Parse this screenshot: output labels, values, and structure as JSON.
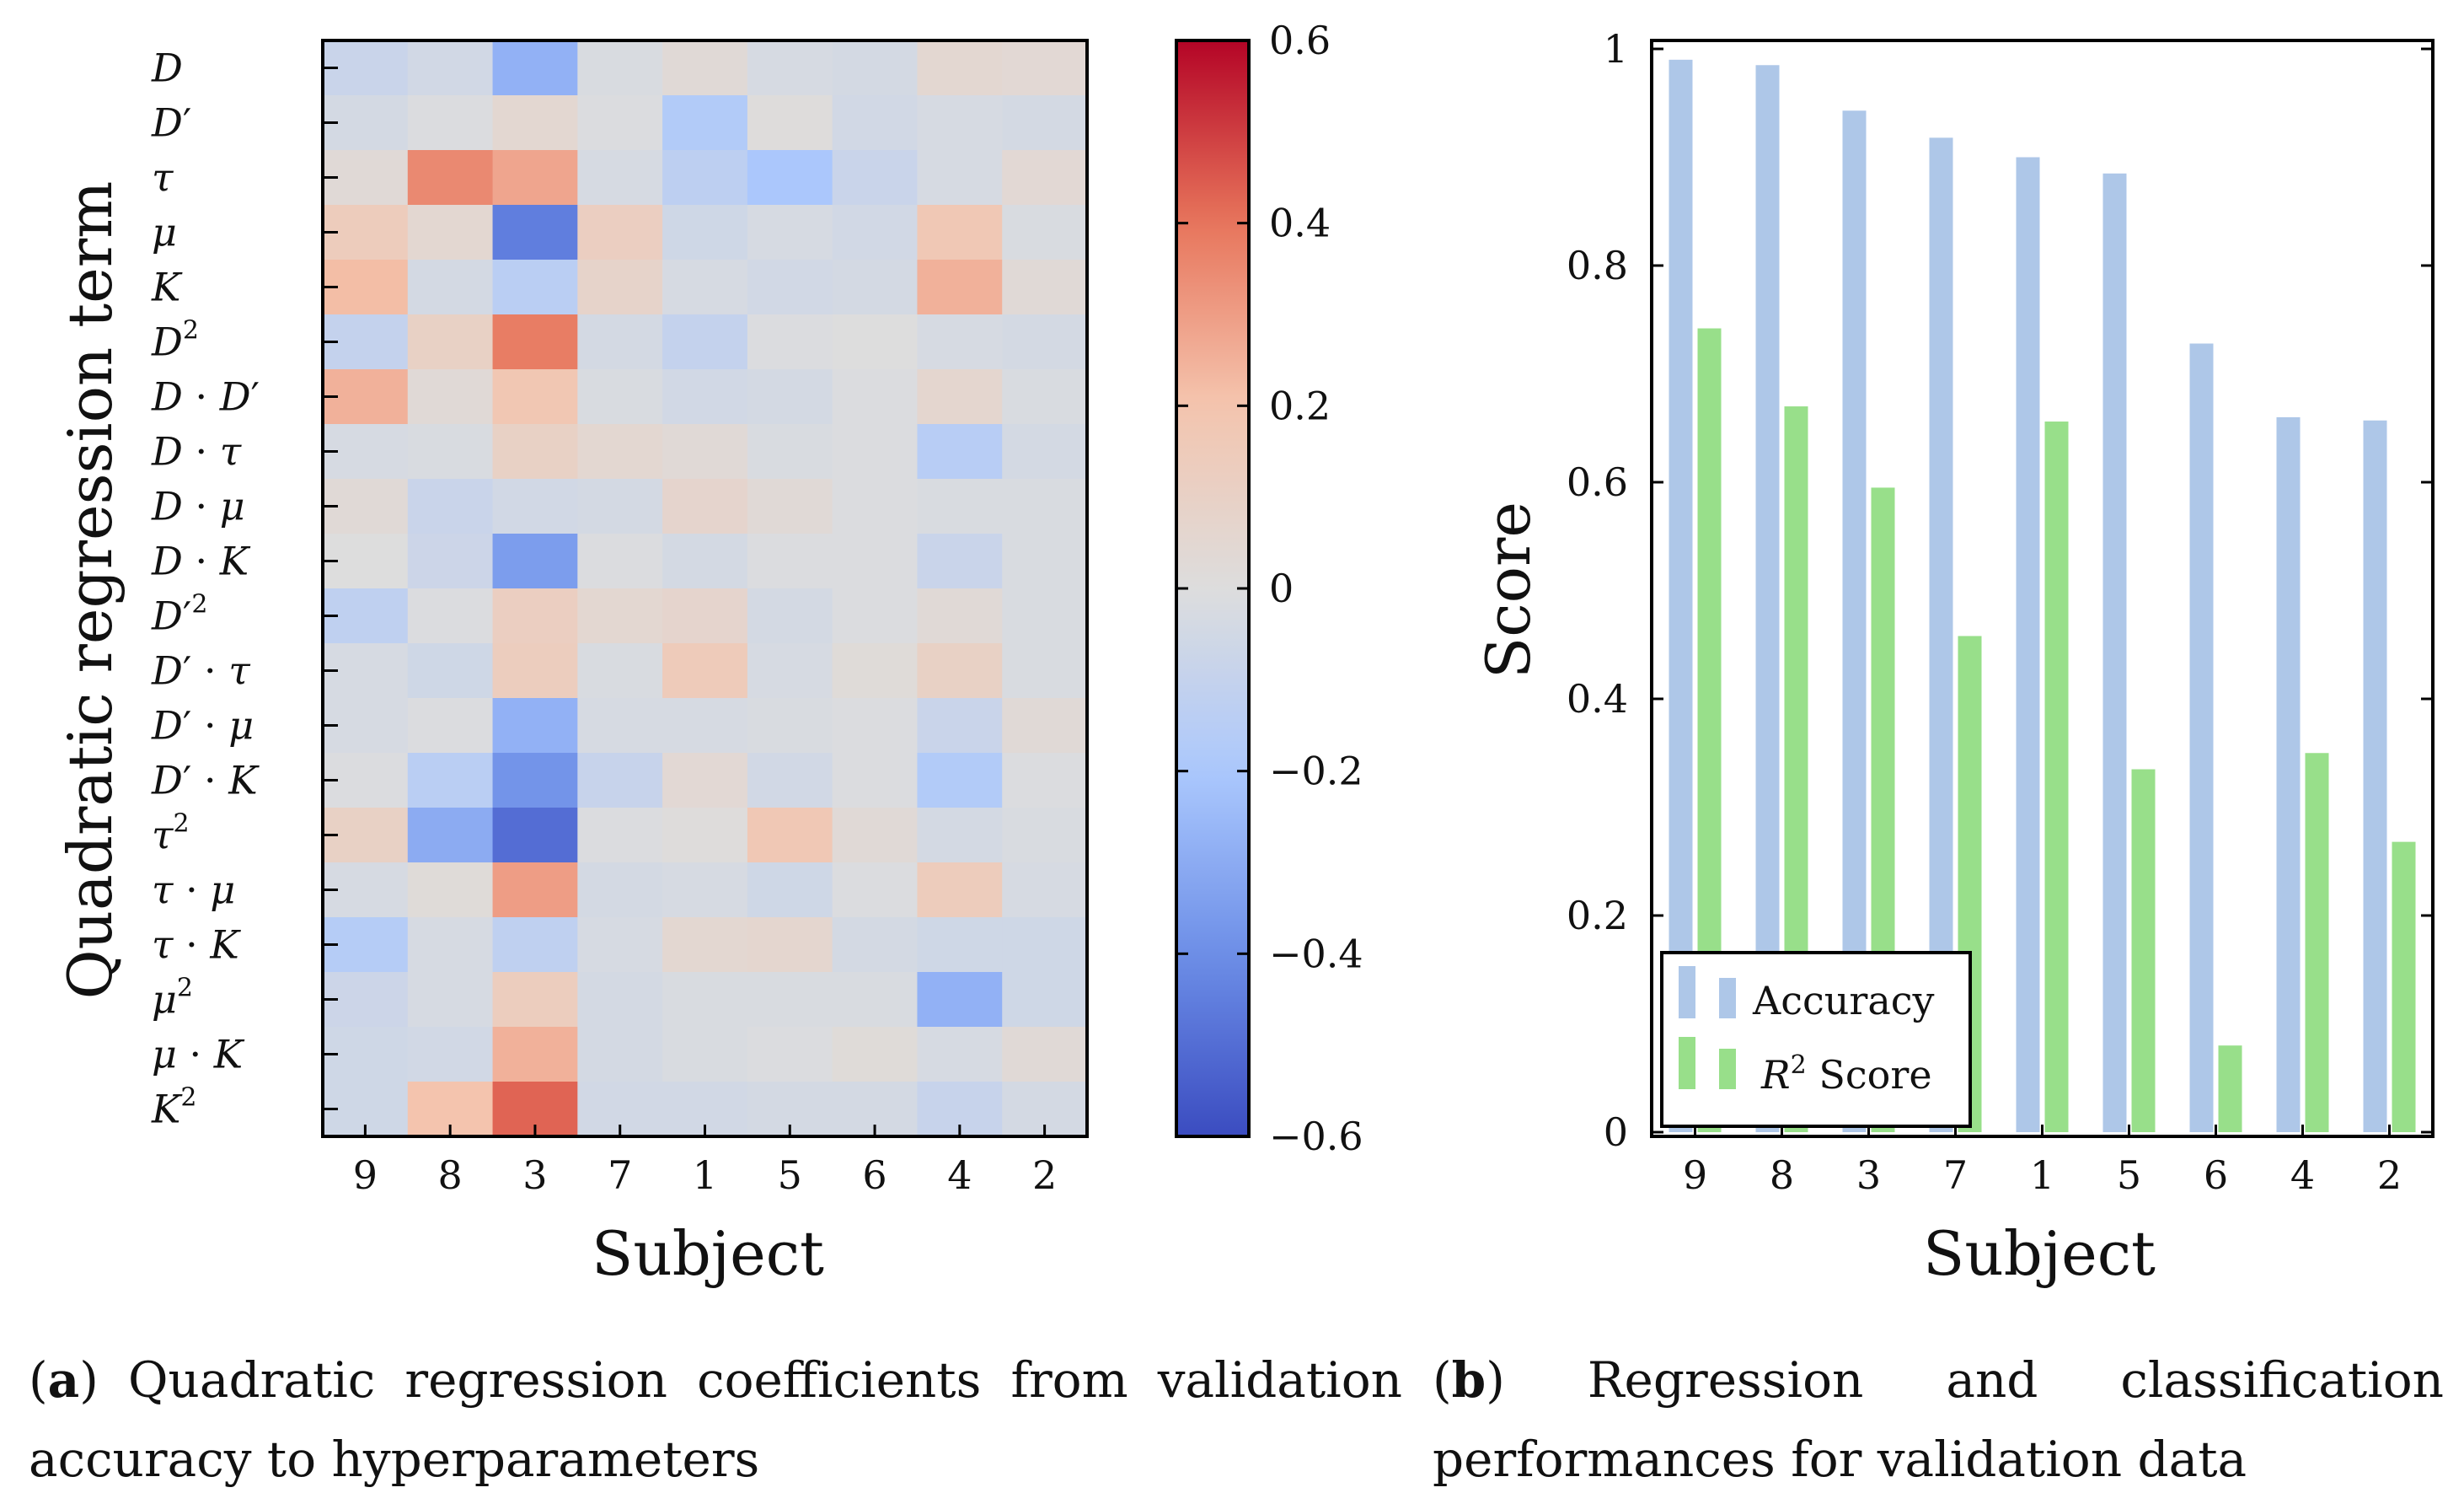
{
  "colors": {
    "accuracy": "#aec7e8",
    "r2": "#98df8a",
    "cmap_low": "#3b4cc0",
    "cmap_mid": "#dddddd",
    "cmap_high": "#b40426"
  },
  "chart_data": [
    {
      "type": "heatmap",
      "title": "",
      "xlabel": "Subject",
      "ylabel": "Quadratic regression term",
      "x_categories": [
        "9",
        "8",
        "3",
        "7",
        "1",
        "5",
        "6",
        "4",
        "2"
      ],
      "y_terms": [
        {
          "base": "D",
          "prime": "",
          "op": "",
          "base2": "",
          "prime2": "",
          "sup": ""
        },
        {
          "base": "D",
          "prime": "′",
          "op": "",
          "base2": "",
          "prime2": "",
          "sup": ""
        },
        {
          "base": "τ",
          "prime": "",
          "op": "",
          "base2": "",
          "prime2": "",
          "sup": ""
        },
        {
          "base": "μ",
          "prime": "",
          "op": "",
          "base2": "",
          "prime2": "",
          "sup": ""
        },
        {
          "base": "K",
          "prime": "",
          "op": "",
          "base2": "",
          "prime2": "",
          "sup": ""
        },
        {
          "base": "D",
          "prime": "",
          "op": "",
          "base2": "",
          "prime2": "",
          "sup": "2"
        },
        {
          "base": "D",
          "prime": "",
          "op": " · ",
          "base2": "D",
          "prime2": "′",
          "sup": ""
        },
        {
          "base": "D",
          "prime": "",
          "op": " · ",
          "base2": "τ",
          "prime2": "",
          "sup": ""
        },
        {
          "base": "D",
          "prime": "",
          "op": " · ",
          "base2": "μ",
          "prime2": "",
          "sup": ""
        },
        {
          "base": "D",
          "prime": "",
          "op": " · ",
          "base2": "K",
          "prime2": "",
          "sup": ""
        },
        {
          "base": "D",
          "prime": "′",
          "op": "",
          "base2": "",
          "prime2": "",
          "sup": "2"
        },
        {
          "base": "D",
          "prime": "′",
          "op": " · ",
          "base2": "τ",
          "prime2": "",
          "sup": ""
        },
        {
          "base": "D",
          "prime": "′",
          "op": " · ",
          "base2": "μ",
          "prime2": "",
          "sup": ""
        },
        {
          "base": "D",
          "prime": "′",
          "op": " · ",
          "base2": "K",
          "prime2": "",
          "sup": ""
        },
        {
          "base": "τ",
          "prime": "",
          "op": "",
          "base2": "",
          "prime2": "",
          "sup": "2"
        },
        {
          "base": "τ",
          "prime": "",
          "op": " · ",
          "base2": "μ",
          "prime2": "",
          "sup": ""
        },
        {
          "base": "τ",
          "prime": "",
          "op": " · ",
          "base2": "K",
          "prime2": "",
          "sup": ""
        },
        {
          "base": "μ",
          "prime": "",
          "op": "",
          "base2": "",
          "prime2": "",
          "sup": "2"
        },
        {
          "base": "μ",
          "prime": "",
          "op": " · ",
          "base2": "K",
          "prime2": "",
          "sup": ""
        },
        {
          "base": "K",
          "prime": "",
          "op": "",
          "base2": "",
          "prime2": "",
          "sup": "2"
        }
      ],
      "values": [
        [
          -0.08,
          -0.05,
          -0.28,
          -0.02,
          0.03,
          -0.03,
          -0.04,
          0.05,
          0.04
        ],
        [
          -0.04,
          -0.01,
          0.05,
          -0.01,
          -0.17,
          0.01,
          -0.05,
          -0.03,
          -0.04
        ],
        [
          0.03,
          0.35,
          0.28,
          -0.03,
          -0.13,
          -0.2,
          -0.08,
          -0.03,
          0.04
        ],
        [
          0.14,
          0.05,
          -0.45,
          0.12,
          -0.06,
          -0.03,
          -0.05,
          0.17,
          -0.02
        ],
        [
          0.22,
          -0.04,
          -0.14,
          0.08,
          -0.03,
          -0.05,
          -0.04,
          0.25,
          0.03
        ],
        [
          -0.1,
          0.1,
          0.38,
          -0.04,
          -0.1,
          -0.01,
          0.0,
          -0.03,
          -0.04
        ],
        [
          0.25,
          0.03,
          0.18,
          -0.02,
          -0.05,
          -0.04,
          -0.01,
          0.06,
          -0.02
        ],
        [
          -0.03,
          -0.02,
          0.1,
          0.05,
          0.03,
          -0.02,
          -0.01,
          -0.15,
          -0.04
        ],
        [
          0.03,
          -0.08,
          -0.05,
          -0.04,
          0.07,
          0.03,
          -0.01,
          -0.02,
          -0.02
        ],
        [
          0.0,
          -0.07,
          -0.35,
          -0.01,
          -0.04,
          -0.01,
          -0.01,
          -0.08,
          -0.02
        ],
        [
          -0.12,
          -0.01,
          0.12,
          0.05,
          0.07,
          -0.04,
          -0.01,
          0.03,
          -0.02
        ],
        [
          -0.03,
          -0.06,
          0.13,
          -0.02,
          0.15,
          -0.03,
          0.02,
          0.1,
          -0.02
        ],
        [
          -0.03,
          -0.01,
          -0.28,
          -0.03,
          -0.03,
          -0.02,
          -0.01,
          -0.08,
          0.03
        ],
        [
          -0.01,
          -0.14,
          -0.38,
          -0.09,
          0.04,
          -0.05,
          -0.01,
          -0.17,
          -0.01
        ],
        [
          0.1,
          -0.3,
          -0.5,
          -0.01,
          0.01,
          0.17,
          0.03,
          -0.04,
          -0.02
        ],
        [
          -0.03,
          0.02,
          0.3,
          -0.04,
          -0.03,
          -0.06,
          -0.01,
          0.14,
          -0.03
        ],
        [
          -0.16,
          -0.03,
          -0.12,
          -0.03,
          0.05,
          0.06,
          -0.04,
          -0.06,
          -0.06
        ],
        [
          -0.07,
          -0.03,
          0.13,
          -0.04,
          -0.02,
          -0.02,
          -0.02,
          -0.28,
          -0.06
        ],
        [
          -0.06,
          -0.05,
          0.25,
          -0.04,
          -0.02,
          -0.01,
          0.02,
          -0.03,
          0.03
        ],
        [
          -0.06,
          0.2,
          0.43,
          -0.05,
          -0.05,
          -0.04,
          -0.04,
          -0.09,
          -0.04
        ]
      ],
      "colorbar": {
        "range": [
          -0.6,
          0.6
        ],
        "ticks": [
          0.6,
          0.4,
          0.2,
          0,
          -0.2,
          -0.4,
          -0.6
        ],
        "tick_labels": [
          "0.6",
          "0.4",
          "0.2",
          "0",
          "−0.2",
          "−0.4",
          "−0.6"
        ]
      }
    },
    {
      "type": "bar",
      "title": "",
      "xlabel": "Subject",
      "ylabel": "Score",
      "categories": [
        "9",
        "8",
        "3",
        "7",
        "1",
        "5",
        "6",
        "4",
        "2"
      ],
      "ylim": [
        0,
        1
      ],
      "yticks": [
        0,
        0.2,
        0.4,
        0.6,
        0.8,
        1
      ],
      "ytick_labels": [
        "0",
        "0.2",
        "0.4",
        "0.6",
        "0.8",
        "1"
      ],
      "series": [
        {
          "name": "Accuracy",
          "values": [
            0.99,
            0.985,
            0.943,
            0.918,
            0.9,
            0.885,
            0.728,
            0.66,
            0.657
          ]
        },
        {
          "name": "R2 Score",
          "values": [
            0.742,
            0.67,
            0.595,
            0.458,
            0.656,
            0.335,
            0.08,
            0.35,
            0.268
          ]
        }
      ],
      "legend": {
        "placement": "bottom-left",
        "entries": [
          {
            "main": "Accuracy",
            "sup": "",
            "rest": ""
          },
          {
            "main": "R",
            "sup": "2",
            "rest": " Score"
          }
        ]
      }
    }
  ],
  "captions": {
    "a": {
      "letter": "a",
      "text": " Quadratic regression coefficients from validation accuracy to hyperparameters"
    },
    "b": {
      "letter": "b",
      "text": " Regression and classification performances for validation data"
    }
  }
}
